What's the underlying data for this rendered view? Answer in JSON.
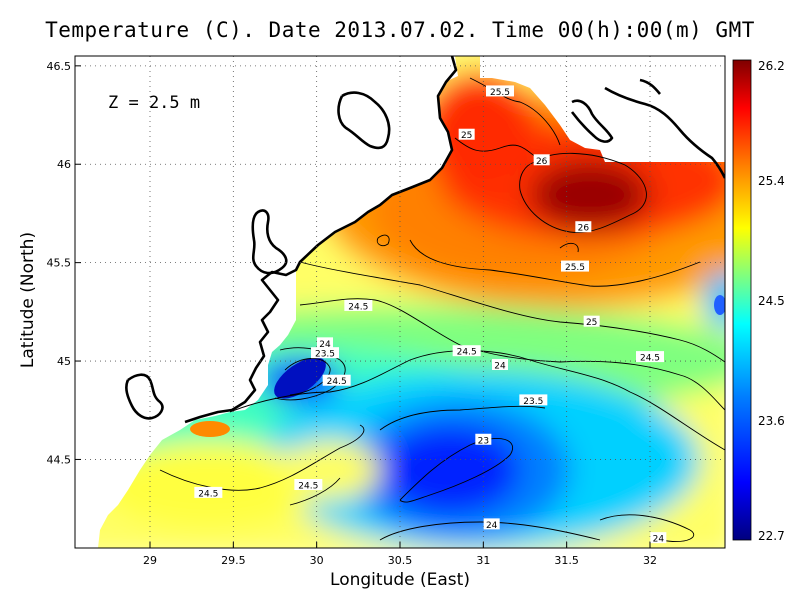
{
  "title": "Temperature (C). Date 2013.07.02. Time 00(h):00(m) GMT",
  "depth_annotation": "Z = 2.5 m",
  "chart_data": {
    "type": "heatmap",
    "title": "Temperature (C). Date 2013.07.02. Time 00(h):00(m) GMT",
    "xlabel": "Longitude (East)",
    "ylabel": "Latitude (North)",
    "xlim": [
      28.55,
      32.45
    ],
    "ylim": [
      44.05,
      46.55
    ],
    "x_ticks": [
      "29",
      "29.5",
      "30",
      "30.5",
      "31",
      "31.5",
      "32"
    ],
    "y_ticks": [
      "44.5",
      "45",
      "45.5",
      "46",
      "46.5"
    ],
    "grid": true,
    "colorbar": {
      "min": 22.7,
      "max": 26.2,
      "tick_labels": [
        "26.2",
        "25.4",
        "24.5",
        "23.6",
        "22.7"
      ],
      "colormap": [
        "#00007f",
        "#0000ff",
        "#007fff",
        "#00ffff",
        "#7fff7f",
        "#ffff00",
        "#ff7f00",
        "#ff0000",
        "#7f0000"
      ]
    },
    "contour_labels": [
      {
        "text": "25.5",
        "lon": 31.1,
        "lat": 46.37
      },
      {
        "text": "25",
        "lon": 30.9,
        "lat": 46.15
      },
      {
        "text": "26",
        "lon": 31.35,
        "lat": 46.02
      },
      {
        "text": "26",
        "lon": 31.6,
        "lat": 45.68
      },
      {
        "text": "25.5",
        "lon": 31.55,
        "lat": 45.48
      },
      {
        "text": "25",
        "lon": 31.65,
        "lat": 45.2
      },
      {
        "text": "24.5",
        "lon": 30.25,
        "lat": 45.28
      },
      {
        "text": "24",
        "lon": 30.05,
        "lat": 45.09
      },
      {
        "text": "23.5",
        "lon": 30.05,
        "lat": 45.04
      },
      {
        "text": "24.5",
        "lon": 30.12,
        "lat": 44.9
      },
      {
        "text": "24.5",
        "lon": 30.9,
        "lat": 45.05
      },
      {
        "text": "24",
        "lon": 31.1,
        "lat": 44.98
      },
      {
        "text": "24.5",
        "lon": 32.0,
        "lat": 45.02
      },
      {
        "text": "23.5",
        "lon": 31.3,
        "lat": 44.8
      },
      {
        "text": "23",
        "lon": 31.0,
        "lat": 44.6
      },
      {
        "text": "24.5",
        "lon": 29.35,
        "lat": 44.33
      },
      {
        "text": "24.5",
        "lon": 29.95,
        "lat": 44.37
      },
      {
        "text": "24",
        "lon": 31.05,
        "lat": 44.17
      },
      {
        "text": "24",
        "lon": 32.05,
        "lat": 44.1
      }
    ]
  }
}
